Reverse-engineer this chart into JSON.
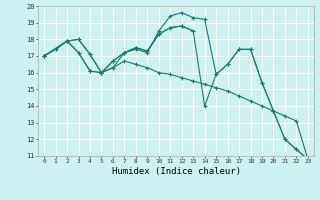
{
  "xlabel": "Humidex (Indice chaleur)",
  "bg_color": "#cdf0f0",
  "grid_color": "#ffffff",
  "line_color": "#1a7a6e",
  "xlim": [
    -0.5,
    23.5
  ],
  "ylim": [
    11,
    20
  ],
  "xticks": [
    0,
    1,
    2,
    3,
    4,
    5,
    6,
    7,
    8,
    9,
    10,
    11,
    12,
    13,
    14,
    15,
    16,
    17,
    18,
    19,
    20,
    21,
    22,
    23
  ],
  "yticks": [
    11,
    12,
    13,
    14,
    15,
    16,
    17,
    18,
    19,
    20
  ],
  "series": [
    {
      "x": [
        0,
        1,
        2,
        3,
        4,
        5,
        6,
        7,
        8,
        9,
        10,
        11,
        12,
        13,
        14,
        15,
        16,
        17,
        18,
        19,
        20,
        21,
        22,
        23
      ],
      "y": [
        17,
        17.4,
        17.9,
        17.2,
        16.1,
        16.0,
        16.3,
        16.7,
        16.5,
        16.3,
        16.0,
        15.9,
        15.7,
        15.5,
        15.3,
        15.1,
        14.9,
        14.6,
        14.3,
        14.0,
        13.7,
        13.4,
        13.1,
        10.8
      ]
    },
    {
      "x": [
        0,
        1,
        2,
        3,
        4,
        5,
        6,
        7,
        8,
        9,
        10,
        11,
        12,
        13,
        14,
        15,
        16,
        17,
        18,
        19,
        20,
        21,
        22,
        23
      ],
      "y": [
        17,
        17.4,
        17.9,
        17.2,
        16.1,
        16.0,
        16.7,
        17.2,
        17.4,
        17.2,
        18.5,
        19.4,
        19.6,
        19.3,
        19.2,
        15.9,
        16.5,
        17.4,
        17.4,
        15.4,
        13.7,
        12.0,
        11.4,
        10.8
      ]
    },
    {
      "x": [
        0,
        2,
        3,
        4,
        5,
        6,
        7,
        8,
        9,
        10,
        11,
        12,
        13
      ],
      "y": [
        17,
        17.9,
        18.0,
        17.1,
        16.0,
        16.7,
        17.2,
        17.5,
        17.3,
        18.3,
        18.7,
        18.8,
        18.5
      ]
    },
    {
      "x": [
        0,
        2,
        3,
        4,
        5,
        6,
        7,
        8,
        9,
        10,
        11,
        12,
        13,
        14,
        15,
        16,
        17,
        18,
        19,
        20,
        21,
        22,
        23
      ],
      "y": [
        17,
        17.9,
        18.0,
        17.1,
        16.0,
        16.3,
        17.2,
        17.5,
        17.3,
        18.3,
        18.7,
        18.8,
        18.5,
        14.0,
        15.9,
        16.5,
        17.4,
        17.4,
        15.4,
        13.7,
        12.0,
        11.4,
        10.8
      ]
    }
  ]
}
